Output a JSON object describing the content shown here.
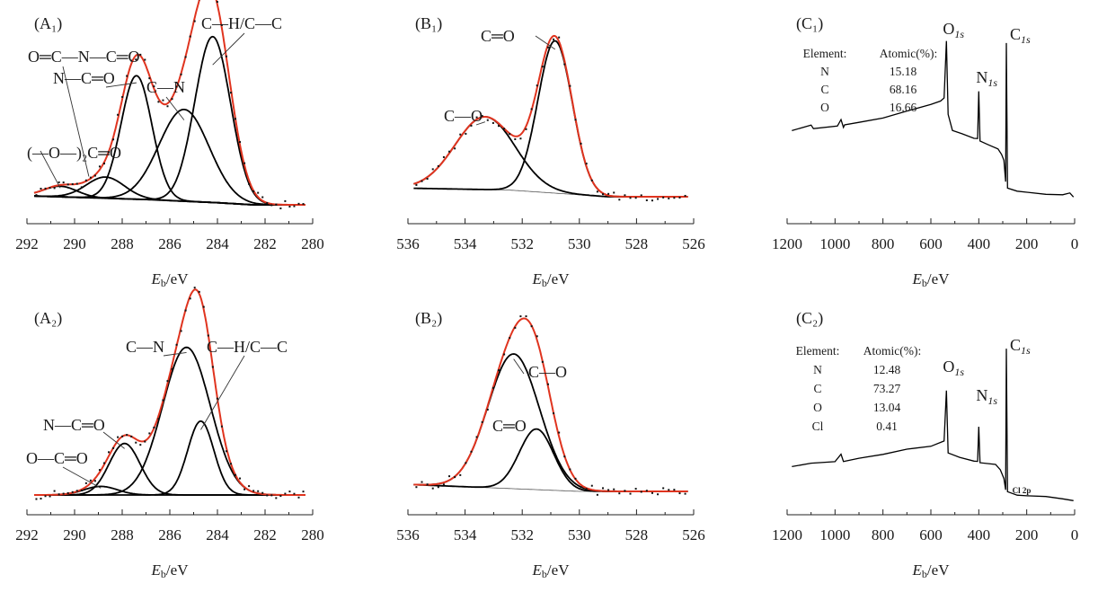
{
  "chart_data": [
    {
      "id": "A1",
      "type": "line",
      "panel_label": "(A₁)",
      "xlabel_main": "E",
      "xlabel_sub": "b",
      "xlabel_unit": "/eV",
      "xlim": [
        292,
        280
      ],
      "ylim": [
        0,
        1.12
      ],
      "ticks": [
        292,
        290,
        288,
        286,
        284,
        282,
        280
      ],
      "x_extent": [
        291.7,
        280.3
      ],
      "baseline": [
        {
          "x": 291.7,
          "y": 0.05
        },
        {
          "x": 287,
          "y": 0.03
        },
        {
          "x": 284,
          "y": 0.012
        },
        {
          "x": 282.5,
          "y": 0.0
        },
        {
          "x": 280.3,
          "y": 0.0
        }
      ],
      "components": [
        {
          "name": "C—H/C—C",
          "center": 284.2,
          "height": 0.94,
          "width": 0.75
        },
        {
          "name": "C—N",
          "center": 285.4,
          "height": 0.52,
          "width": 1.05
        },
        {
          "name": "N—C═O",
          "center": 287.4,
          "height": 0.7,
          "width": 0.65
        },
        {
          "name": "O═C—N—C═O",
          "center": 288.7,
          "height": 0.12,
          "width": 0.8
        },
        {
          "name": "(—O—)₂C═O",
          "center": 290.6,
          "height": 0.06,
          "width": 0.7
        }
      ],
      "data_markers": {
        "count": 60,
        "marker": "dot"
      },
      "annotations": [
        {
          "text": "C—H/C—C",
          "target_x": 284.2
        },
        {
          "text": "O═C—N—C═O",
          "target_x": 289.4
        },
        {
          "text": "N—C═O",
          "target_x": 287.4
        },
        {
          "text": "C—N",
          "target_x": 285.4
        },
        {
          "text": "(—O—)₂C═O",
          "target_x": 290.6
        }
      ]
    },
    {
      "id": "A2",
      "type": "line",
      "panel_label": "(A₂)",
      "xlabel_main": "E",
      "xlabel_sub": "b",
      "xlabel_unit": "/eV",
      "xlim": [
        292,
        280
      ],
      "ylim": [
        0,
        1.12
      ],
      "ticks": [
        292,
        290,
        288,
        286,
        284,
        282,
        280
      ],
      "x_extent": [
        291.7,
        280.3
      ],
      "baseline": [
        {
          "x": 291.7,
          "y": 0.0
        },
        {
          "x": 280.3,
          "y": 0.0
        }
      ],
      "components": [
        {
          "name": "C—N",
          "center": 285.3,
          "height": 0.86,
          "width": 1.0
        },
        {
          "name": "C—H/C—C",
          "center": 284.7,
          "height": 0.43,
          "width": 0.55
        },
        {
          "name": "N—C═O",
          "center": 287.9,
          "height": 0.3,
          "width": 0.65
        },
        {
          "name": "O—C═O",
          "center": 288.9,
          "height": 0.05,
          "width": 0.7
        }
      ],
      "data_markers": {
        "count": 60,
        "marker": "dot"
      },
      "annotations": [
        {
          "text": "C—N",
          "target_x": 285.3
        },
        {
          "text": "C—H/C—C",
          "target_x": 284.7
        },
        {
          "text": "N—C═O",
          "target_x": 287.9
        },
        {
          "text": "O—C═O",
          "target_x": 288.9
        }
      ]
    },
    {
      "id": "B1",
      "type": "line",
      "panel_label": "(B₁)",
      "xlabel_main": "E",
      "xlabel_sub": "b",
      "xlabel_unit": "/eV",
      "xlim": [
        536,
        526
      ],
      "ylim": [
        0,
        1.12
      ],
      "ticks": [
        536,
        534,
        532,
        530,
        528,
        526
      ],
      "x_extent": [
        535.8,
        526.2
      ],
      "baseline": [
        {
          "x": 535.8,
          "y": 0.05
        },
        {
          "x": 532.5,
          "y": 0.04
        },
        {
          "x": 529,
          "y": 0.0
        },
        {
          "x": 526.2,
          "y": 0.0
        }
      ],
      "components": [
        {
          "name": "C═O",
          "center": 530.85,
          "height": 0.9,
          "width": 0.6
        },
        {
          "name": "C—O",
          "center": 533.3,
          "height": 0.43,
          "width": 1.05
        }
      ],
      "data_markers": {
        "count": 50,
        "marker": "dot"
      },
      "annotations": [
        {
          "text": "C═O",
          "target_x": 530.85
        },
        {
          "text": "C—O",
          "target_x": 533.3
        }
      ]
    },
    {
      "id": "B2",
      "type": "line",
      "panel_label": "(B₂)",
      "xlabel_main": "E",
      "xlabel_sub": "b",
      "xlabel_unit": "/eV",
      "xlim": [
        536,
        526
      ],
      "ylim": [
        0,
        1.12
      ],
      "ticks": [
        536,
        534,
        532,
        530,
        528,
        526
      ],
      "x_extent": [
        535.8,
        526.2
      ],
      "baseline": [
        {
          "x": 535.8,
          "y": 0.04
        },
        {
          "x": 530,
          "y": 0.0
        },
        {
          "x": 526.2,
          "y": 0.0
        }
      ],
      "components": [
        {
          "name": "C—O",
          "center": 532.3,
          "height": 0.8,
          "width": 0.9
        },
        {
          "name": "C═O",
          "center": 531.5,
          "height": 0.36,
          "width": 0.6
        }
      ],
      "data_markers": {
        "count": 50,
        "marker": "dot"
      },
      "annotations": [
        {
          "text": "C—O",
          "target_x": 532.3
        },
        {
          "text": "C═O",
          "target_x": 531.5
        }
      ]
    },
    {
      "id": "C1",
      "type": "line",
      "panel_label": "(C₁)",
      "xlabel_main": "E",
      "xlabel_sub": "b",
      "xlabel_unit": "/eV",
      "xlim": [
        1200,
        0
      ],
      "ylim": [
        0,
        1.12
      ],
      "ticks": [
        1200,
        1000,
        800,
        600,
        400,
        200,
        0
      ],
      "series": [
        {
          "name": "survey",
          "points": [
            {
              "x": 1180,
              "y": 0.42
            },
            {
              "x": 1100,
              "y": 0.45
            },
            {
              "x": 1090,
              "y": 0.43
            },
            {
              "x": 990,
              "y": 0.45
            },
            {
              "x": 975,
              "y": 0.49
            },
            {
              "x": 965,
              "y": 0.44
            },
            {
              "x": 960,
              "y": 0.45
            },
            {
              "x": 900,
              "y": 0.47
            },
            {
              "x": 800,
              "y": 0.5
            },
            {
              "x": 700,
              "y": 0.54
            },
            {
              "x": 600,
              "y": 0.58
            },
            {
              "x": 560,
              "y": 0.6
            },
            {
              "x": 545,
              "y": 0.62
            },
            {
              "x": 535,
              "y": 0.98
            },
            {
              "x": 528,
              "y": 0.52
            },
            {
              "x": 510,
              "y": 0.42
            },
            {
              "x": 470,
              "y": 0.4
            },
            {
              "x": 420,
              "y": 0.37
            },
            {
              "x": 405,
              "y": 0.37
            },
            {
              "x": 400,
              "y": 0.66
            },
            {
              "x": 395,
              "y": 0.35
            },
            {
              "x": 360,
              "y": 0.33
            },
            {
              "x": 320,
              "y": 0.3
            },
            {
              "x": 305,
              "y": 0.27
            },
            {
              "x": 295,
              "y": 0.23
            },
            {
              "x": 288,
              "y": 0.1
            },
            {
              "x": 285,
              "y": 0.96
            },
            {
              "x": 280,
              "y": 0.06
            },
            {
              "x": 240,
              "y": 0.04
            },
            {
              "x": 120,
              "y": 0.02
            },
            {
              "x": 50,
              "y": 0.02
            },
            {
              "x": 20,
              "y": 0.03
            },
            {
              "x": 5,
              "y": 0.0
            }
          ]
        }
      ],
      "peak_labels": [
        {
          "letter": "O",
          "sub": "1s",
          "x": 535
        },
        {
          "letter": "N",
          "sub": "1s",
          "x": 400
        },
        {
          "letter": "C",
          "sub": "1s",
          "x": 285
        }
      ],
      "table": {
        "header": [
          "Element:",
          "Atomic(%):"
        ],
        "rows": [
          [
            "N",
            "15.18"
          ],
          [
            "C",
            "68.16"
          ],
          [
            "O",
            "16.66"
          ]
        ]
      }
    },
    {
      "id": "C2",
      "type": "line",
      "panel_label": "(C₂)",
      "xlabel_main": "E",
      "xlabel_sub": "b",
      "xlabel_unit": "/eV",
      "xlim": [
        1200,
        0
      ],
      "ylim": [
        0,
        1.12
      ],
      "ticks": [
        1200,
        1000,
        800,
        600,
        400,
        200,
        0
      ],
      "series": [
        {
          "name": "survey",
          "points": [
            {
              "x": 1180,
              "y": 0.2
            },
            {
              "x": 1100,
              "y": 0.22
            },
            {
              "x": 1000,
              "y": 0.23
            },
            {
              "x": 975,
              "y": 0.27
            },
            {
              "x": 965,
              "y": 0.23
            },
            {
              "x": 900,
              "y": 0.25
            },
            {
              "x": 800,
              "y": 0.27
            },
            {
              "x": 700,
              "y": 0.3
            },
            {
              "x": 600,
              "y": 0.32
            },
            {
              "x": 545,
              "y": 0.35
            },
            {
              "x": 535,
              "y": 0.66
            },
            {
              "x": 528,
              "y": 0.28
            },
            {
              "x": 480,
              "y": 0.25
            },
            {
              "x": 420,
              "y": 0.23
            },
            {
              "x": 405,
              "y": 0.23
            },
            {
              "x": 400,
              "y": 0.44
            },
            {
              "x": 395,
              "y": 0.22
            },
            {
              "x": 330,
              "y": 0.21
            },
            {
              "x": 310,
              "y": 0.18
            },
            {
              "x": 295,
              "y": 0.12
            },
            {
              "x": 288,
              "y": 0.05
            },
            {
              "x": 285,
              "y": 0.92
            },
            {
              "x": 280,
              "y": 0.04
            },
            {
              "x": 240,
              "y": 0.02
            },
            {
              "x": 200,
              "y": 0.015
            },
            {
              "x": 120,
              "y": 0.01
            },
            {
              "x": 50,
              "y": 0.0
            },
            {
              "x": 5,
              "y": -0.01
            }
          ]
        }
      ],
      "peak_labels": [
        {
          "letter": "O",
          "sub": "1s",
          "x": 535
        },
        {
          "letter": "N",
          "sub": "1s",
          "x": 400
        },
        {
          "letter": "C",
          "sub": "1s",
          "x": 285
        }
      ],
      "extra_label": {
        "text": "Cl 2p",
        "x": 200
      },
      "table": {
        "header": [
          "Element:",
          "Atomic(%):"
        ],
        "rows": [
          [
            "N",
            "12.48"
          ],
          [
            "C",
            "73.27"
          ],
          [
            "O",
            "13.04"
          ],
          [
            "Cl",
            "0.41"
          ]
        ]
      }
    }
  ],
  "colors": {
    "envelope": "#e0341f",
    "component": "#000000",
    "baseline": "#555555",
    "axis": "#222222"
  }
}
